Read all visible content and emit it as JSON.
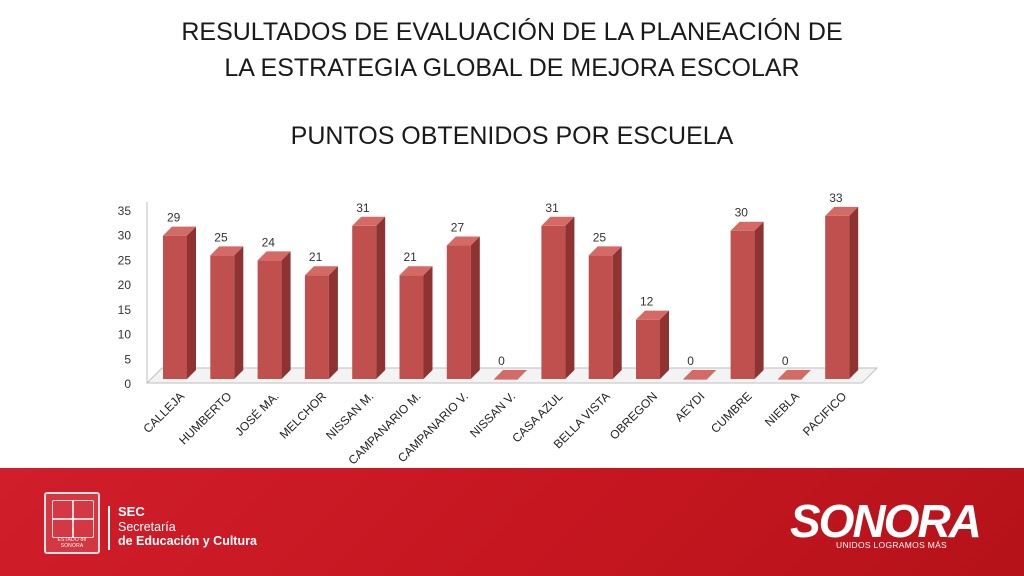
{
  "header": {
    "title_line1": "RESULTADOS DE EVALUACIÓN DE LA PLANEACIÓN DE",
    "title_line2": "LA ESTRATEGIA GLOBAL DE MEJORA ESCOLAR",
    "subtitle": "PUNTOS OBTENIDOS POR ESCUELA"
  },
  "chart_data": {
    "type": "bar",
    "title": "PUNTOS OBTENIDOS POR ESCUELA",
    "categories": [
      "CALLEJA",
      "HUMBERTO",
      "JOSÉ MA.",
      "MELCHOR",
      "NISSAN M.",
      "CAMPANARIO M.",
      "CAMPANARIO V.",
      "NISSAN V.",
      "CASA AZUL",
      "BELLA VISTA",
      "OBREGON",
      "AEYDI",
      "CUMBRE",
      "NIEBLA",
      "PACIFICO"
    ],
    "values": [
      29,
      25,
      24,
      21,
      31,
      21,
      27,
      0,
      31,
      25,
      12,
      0,
      30,
      0,
      33
    ],
    "yticks": [
      0,
      5,
      10,
      15,
      20,
      25,
      30,
      35
    ],
    "ylim": [
      0,
      35
    ],
    "xlabel": "",
    "ylabel": "",
    "bar_color": "#c0504d",
    "legend": "none",
    "grid": false
  },
  "footer": {
    "seal_text": "ESTADO de SONORA",
    "sec_abbr": "SEC",
    "sec_line1": "Secretaría",
    "sec_line2": "de Educación y Cultura",
    "brand": "SONORA",
    "tagline": "UNIDOS LOGRAMOS MÁS",
    "background_color": "#c8171f"
  }
}
